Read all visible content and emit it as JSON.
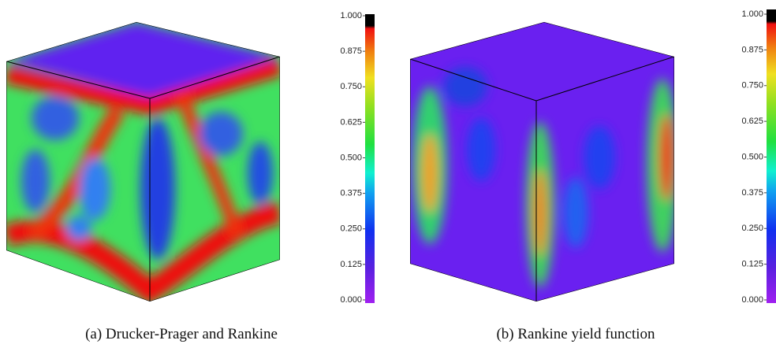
{
  "figures": [
    {
      "caption": "(a) Drucker-Prager and Rankine",
      "colorbar": {
        "ticks": [
          {
            "value": 0,
            "label": "0.000"
          },
          {
            "value": 0.125,
            "label": "0.125"
          },
          {
            "value": 0.25,
            "label": "0.250"
          },
          {
            "value": 0.375,
            "label": "0.375"
          },
          {
            "value": 0.5,
            "label": "0.500"
          },
          {
            "value": 0.625,
            "label": "0.625"
          },
          {
            "value": 0.75,
            "label": "0.750"
          },
          {
            "value": 0.875,
            "label": "0.875"
          },
          {
            "value": 1,
            "label": "1.000"
          }
        ]
      }
    },
    {
      "caption": "(b) Rankine yield function",
      "colorbar": {
        "ticks": [
          {
            "value": 0,
            "label": "0.000"
          },
          {
            "value": 0.125,
            "label": "0.125"
          },
          {
            "value": 0.25,
            "label": "0.250"
          },
          {
            "value": 0.375,
            "label": "0.375"
          },
          {
            "value": 0.5,
            "label": "0.500"
          },
          {
            "value": 0.625,
            "label": "0.625"
          },
          {
            "value": 0.75,
            "label": "0.750"
          },
          {
            "value": 0.875,
            "label": "0.875"
          },
          {
            "value": 1,
            "label": "1.000"
          }
        ]
      }
    }
  ]
}
